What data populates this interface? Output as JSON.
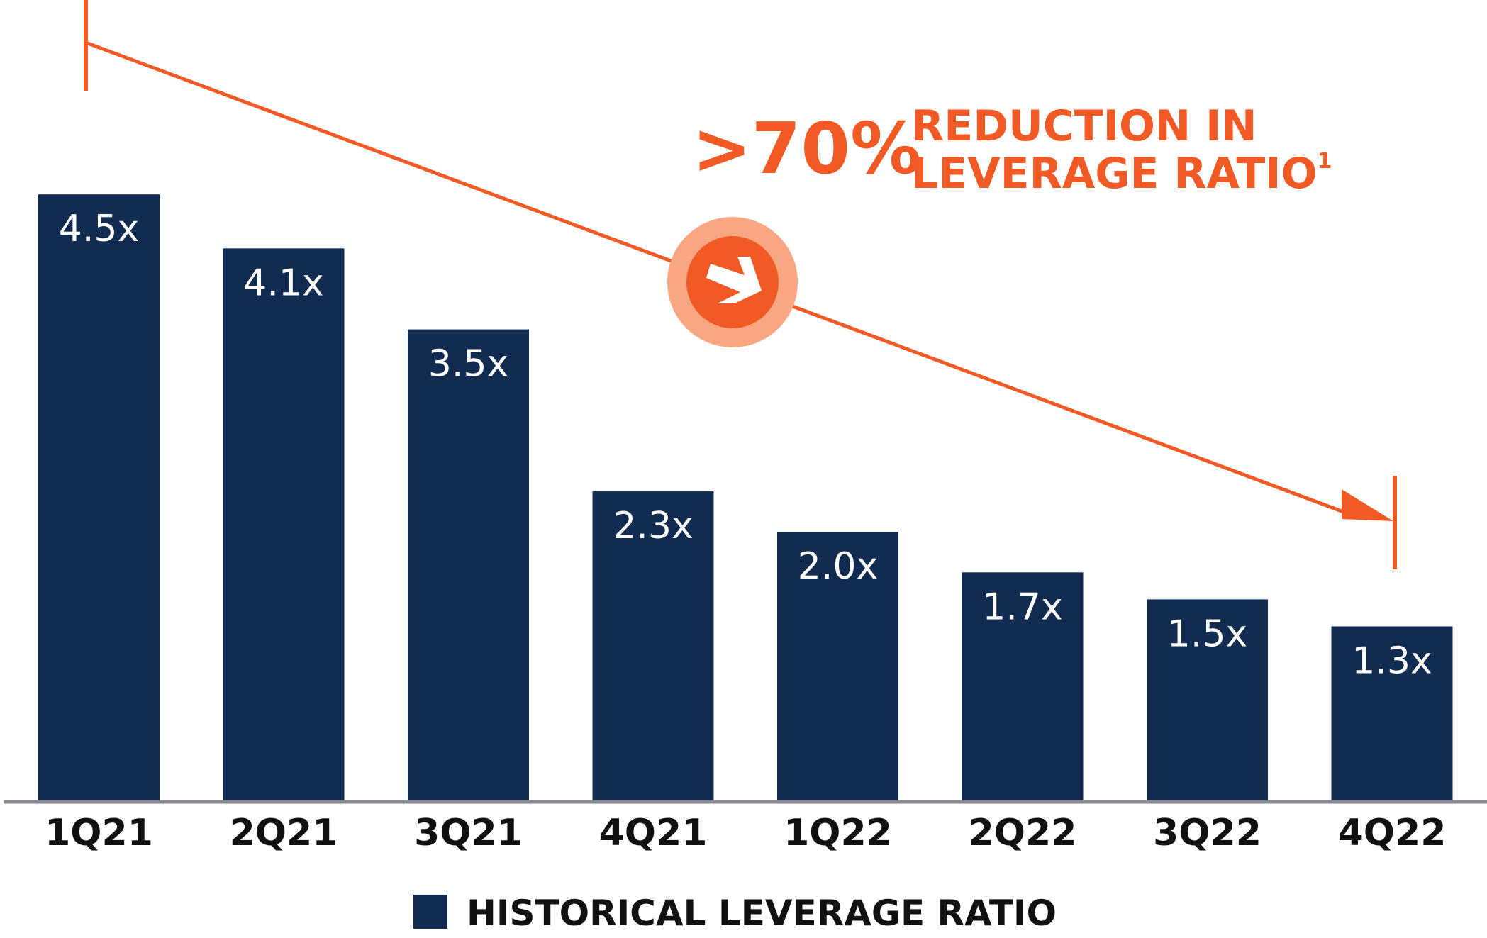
{
  "chart_data": {
    "type": "bar",
    "categories": [
      "1Q21",
      "2Q21",
      "3Q21",
      "4Q21",
      "1Q22",
      "2Q22",
      "3Q22",
      "4Q22"
    ],
    "values": [
      4.5,
      4.1,
      3.5,
      2.3,
      2.0,
      1.7,
      1.5,
      1.3
    ],
    "data_labels": [
      "4.5x",
      "4.1x",
      "3.5x",
      "2.3x",
      "2.0x",
      "1.7x",
      "1.5x",
      "1.3x"
    ],
    "ylim": [
      0,
      5.94
    ],
    "legend": "HISTORICAL LEVERAGE RATIO",
    "annotation": {
      "percent": ">70%",
      "line1": "REDUCTION IN",
      "line2": "LEVERAGE RATIO",
      "footnote": "1"
    }
  },
  "colors": {
    "bar": "#122b50",
    "accent": "#f15a24",
    "accent_light": "#f8a782",
    "axis": "#8a8a93",
    "text": "#111111"
  }
}
